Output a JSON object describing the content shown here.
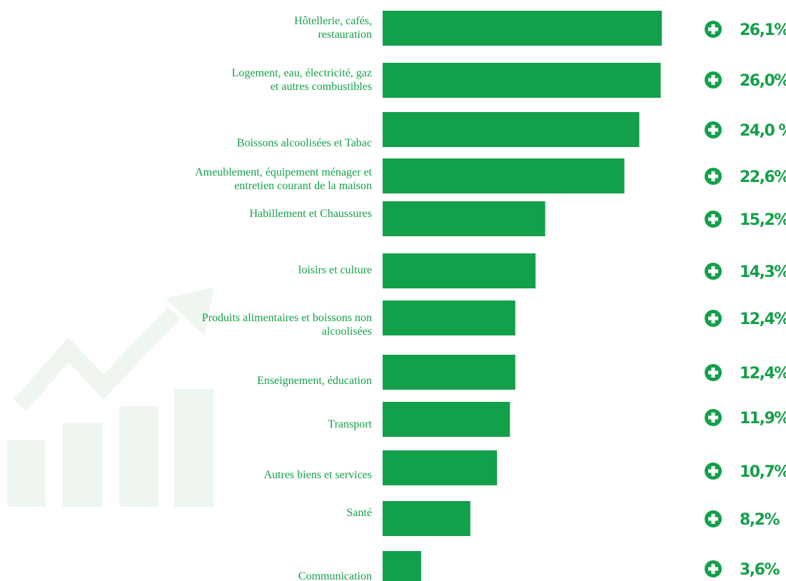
{
  "colors": {
    "bar": "#12a04a",
    "text": "#15a04a",
    "watermark": "#eef6ef"
  },
  "icons": {
    "watermark": "trend-chart-icon",
    "value_marker": "plus-circle-icon"
  },
  "chart_data": {
    "type": "bar",
    "orientation": "horizontal",
    "title": "",
    "xlabel": "",
    "ylabel": "",
    "xlim": [
      0,
      26.1
    ],
    "grid": false,
    "legend": "none",
    "categories": [
      "Hôtellerie, cafés, restauration",
      "Logement, eau, électricité, gaz et autres combustibles",
      "Boissons alcoolisées et Tabac",
      "Ameublement, équipement ménager et entretien courant de la maison",
      "Habillement et Chaussures",
      "loisirs et culture",
      "Produits alimentaires et boissons non alcoolisées",
      "Enseignement, éducation",
      "Transport",
      "Autres biens et services",
      "Santé",
      "Communication"
    ],
    "category_lines": [
      [
        "Hôtellerie, cafés,",
        "restauration"
      ],
      [
        "Logement, eau, électricité, gaz",
        "et autres combustibles"
      ],
      [
        "Boissons alcoolisées et Tabac"
      ],
      [
        "Ameublement, équipement ménager et",
        "entretien courant de la maison"
      ],
      [
        "Habillement et Chaussures"
      ],
      [
        "loisirs et culture"
      ],
      [
        "Produits alimentaires et boissons non",
        "alcoolisées"
      ],
      [
        "Enseignement, éducation"
      ],
      [
        "Transport"
      ],
      [
        "Autres biens et services"
      ],
      [
        "Santé"
      ],
      [
        "Communication"
      ]
    ],
    "values": [
      26.1,
      26.0,
      24.0,
      22.6,
      15.2,
      14.3,
      12.4,
      12.4,
      11.9,
      10.7,
      8.2,
      3.6
    ],
    "value_labels": [
      "26,1%",
      "26,0%",
      "24,0 %",
      "22,6%",
      "15,2%",
      "14,3%",
      "12,4%",
      "12,4%",
      "11,9%",
      "10,7%",
      "8,2%",
      "3,6%"
    ]
  }
}
